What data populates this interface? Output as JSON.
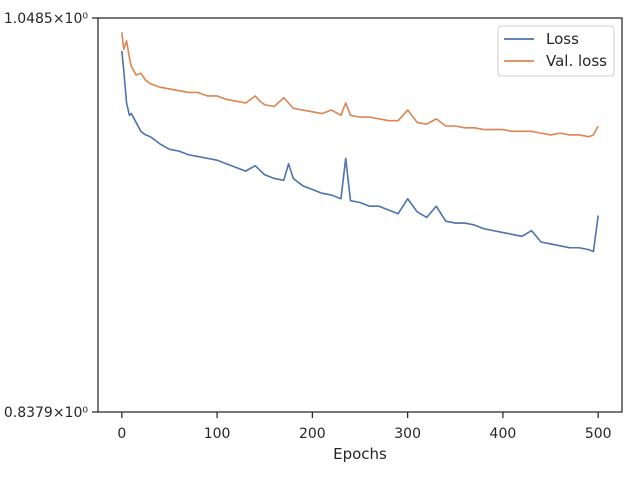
{
  "chart_data": {
    "type": "line",
    "xlabel": "Epochs",
    "ylabel": "",
    "xlim": [
      -25,
      525
    ],
    "ylim": [
      0.8379,
      1.0485
    ],
    "yscale": "log",
    "x_ticks": [
      0,
      100,
      200,
      300,
      400,
      500
    ],
    "y_ticks": [
      {
        "value": 1.0485,
        "label": "1.0485×10⁰"
      },
      {
        "value": 0.8379,
        "label": "0.8379×10⁰"
      }
    ],
    "legend": "top-right",
    "grid": false,
    "series": [
      {
        "name": "Loss",
        "color": "#4c72b0",
        "x": [
          0,
          2,
          5,
          8,
          10,
          15,
          20,
          25,
          30,
          40,
          50,
          60,
          70,
          80,
          90,
          100,
          110,
          120,
          130,
          140,
          150,
          160,
          170,
          175,
          180,
          190,
          200,
          210,
          220,
          230,
          235,
          240,
          250,
          260,
          270,
          280,
          290,
          300,
          310,
          320,
          330,
          340,
          350,
          360,
          370,
          380,
          390,
          400,
          410,
          420,
          430,
          440,
          450,
          460,
          470,
          480,
          490,
          495,
          500
        ],
        "values": [
          1.029,
          1.018,
          0.999,
          0.992,
          0.993,
          0.988,
          0.983,
          0.981,
          0.98,
          0.976,
          0.973,
          0.972,
          0.97,
          0.969,
          0.968,
          0.967,
          0.965,
          0.963,
          0.961,
          0.964,
          0.959,
          0.957,
          0.956,
          0.965,
          0.957,
          0.953,
          0.951,
          0.949,
          0.948,
          0.946,
          0.968,
          0.945,
          0.944,
          0.942,
          0.942,
          0.94,
          0.938,
          0.946,
          0.939,
          0.936,
          0.942,
          0.934,
          0.933,
          0.933,
          0.932,
          0.93,
          0.929,
          0.928,
          0.927,
          0.926,
          0.929,
          0.923,
          0.922,
          0.921,
          0.92,
          0.92,
          0.919,
          0.918,
          0.937
        ]
      },
      {
        "name": "Val. loss",
        "color": "#dd8452",
        "x": [
          0,
          2,
          5,
          8,
          10,
          15,
          20,
          25,
          30,
          40,
          50,
          60,
          70,
          80,
          90,
          100,
          110,
          120,
          130,
          140,
          145,
          150,
          160,
          170,
          175,
          180,
          190,
          200,
          210,
          220,
          230,
          235,
          240,
          250,
          260,
          270,
          280,
          290,
          300,
          310,
          320,
          330,
          340,
          350,
          360,
          370,
          380,
          390,
          400,
          410,
          420,
          430,
          440,
          450,
          460,
          470,
          480,
          490,
          495,
          500
        ],
        "values": [
          1.04,
          1.03,
          1.035,
          1.025,
          1.02,
          1.015,
          1.016,
          1.012,
          1.01,
          1.008,
          1.007,
          1.006,
          1.005,
          1.005,
          1.003,
          1.003,
          1.001,
          1.0,
          0.999,
          1.003,
          1.0,
          0.998,
          0.997,
          1.002,
          0.999,
          0.996,
          0.995,
          0.994,
          0.993,
          0.995,
          0.992,
          0.999,
          0.992,
          0.991,
          0.991,
          0.99,
          0.989,
          0.989,
          0.995,
          0.988,
          0.987,
          0.99,
          0.986,
          0.986,
          0.985,
          0.985,
          0.984,
          0.984,
          0.984,
          0.983,
          0.983,
          0.983,
          0.982,
          0.981,
          0.982,
          0.981,
          0.981,
          0.98,
          0.981,
          0.986
        ]
      }
    ]
  }
}
